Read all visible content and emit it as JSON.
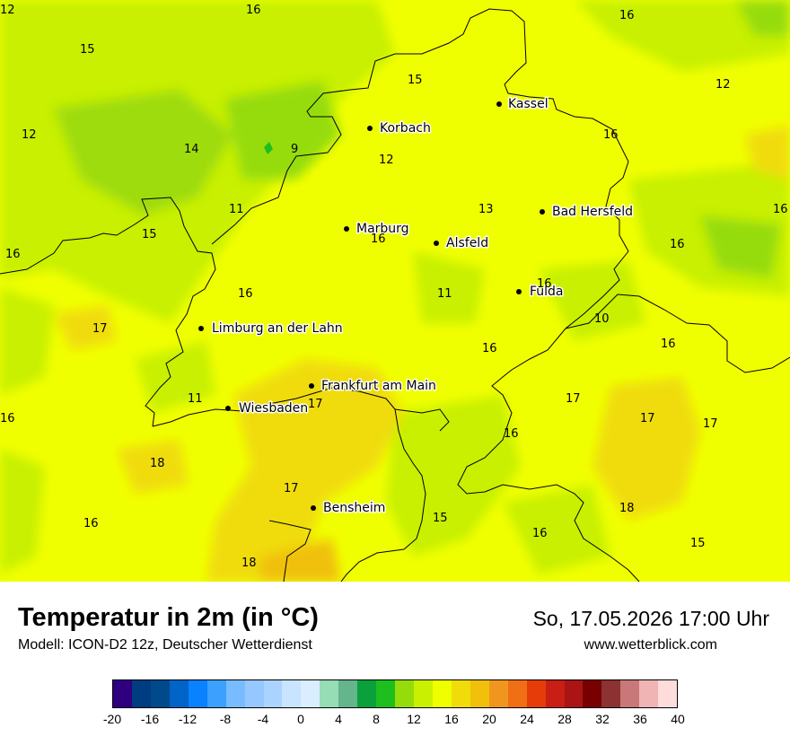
{
  "map": {
    "cities": [
      {
        "name": "Kassel"
      },
      {
        "name": "Korbach"
      },
      {
        "name": "Marburg"
      },
      {
        "name": "Alsfeld"
      },
      {
        "name": "Bad Hersfeld"
      },
      {
        "name": "Fulda"
      },
      {
        "name": "Limburg an der Lahn"
      },
      {
        "name": "Frankfurt am Main"
      },
      {
        "name": "Wiesbaden"
      },
      {
        "name": "Bensheim"
      }
    ],
    "values": [
      "16",
      "16",
      "15",
      "15",
      "12",
      "12",
      "16",
      "12",
      "14",
      "9",
      "12",
      "11",
      "13",
      "16",
      "15",
      "16",
      "16",
      "16",
      "16",
      "16",
      "11",
      "17",
      "10",
      "16",
      "16",
      "11",
      "17",
      "17",
      "17",
      "16",
      "18",
      "17",
      "18",
      "16",
      "15",
      "17",
      "16",
      "16",
      "18",
      "15"
    ]
  },
  "footer": {
    "title": "Temperatur in 2m (in °C)",
    "model": "Modell: ICON-D2 12z, Deutscher Wetterdienst",
    "datetime": "So, 17.05.2026 17:00 Uhr",
    "website": "www.wetterblick.com"
  },
  "legend": {
    "colors": [
      "#2e0080",
      "#003c80",
      "#004a8c",
      "#0064c8",
      "#0a82ff",
      "#3ca0ff",
      "#78bcff",
      "#96c8ff",
      "#aad4ff",
      "#c8e4ff",
      "#daeeff",
      "#96dcb4",
      "#64b48c",
      "#0aa03c",
      "#1ebe1e",
      "#96dc0a",
      "#c8f000",
      "#f0ff00",
      "#f0dc0a",
      "#f0c00a",
      "#f0961e",
      "#f06e14",
      "#e63c0a",
      "#c81e14",
      "#aa1414",
      "#780000",
      "#8c3232",
      "#c87878",
      "#f0b4b4",
      "#ffdcdc"
    ],
    "ticks": [
      "-20",
      "-16",
      "-12",
      "-8",
      "-4",
      "0",
      "4",
      "8",
      "12",
      "16",
      "20",
      "24",
      "28",
      "32",
      "36",
      "40"
    ]
  }
}
